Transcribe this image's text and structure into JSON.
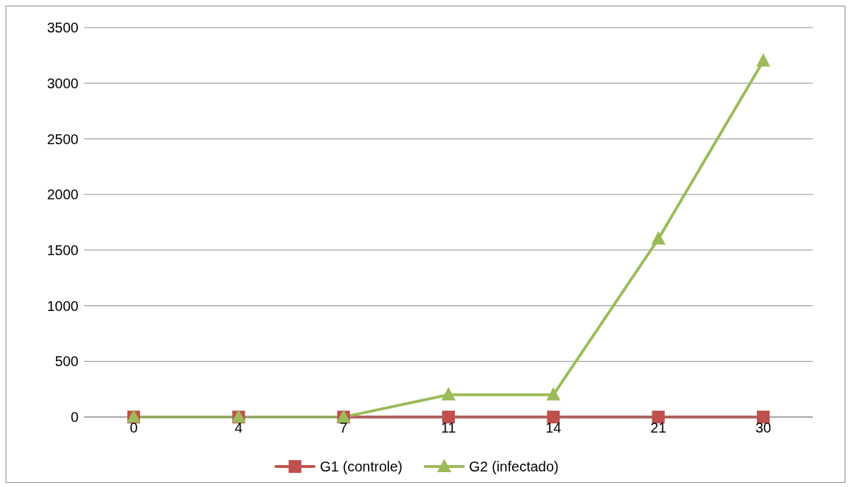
{
  "chart_data": {
    "type": "line",
    "categories": [
      "0",
      "4",
      "7",
      "11",
      "14",
      "21",
      "30"
    ],
    "series": [
      {
        "name": "G1 (controle)",
        "color": "#c0504d",
        "marker": "square",
        "values": [
          0,
          0,
          0,
          0,
          0,
          0,
          0
        ]
      },
      {
        "name": "G2 (infectado)",
        "color": "#9bbb59",
        "marker": "triangle",
        "values": [
          0,
          0,
          0,
          200,
          200,
          1600,
          3200
        ]
      }
    ],
    "ylim": [
      0,
      3500
    ],
    "yticks": [
      0,
      500,
      1000,
      1500,
      2000,
      2500,
      3000,
      3500
    ],
    "grid": "y",
    "legend": "bottom"
  }
}
